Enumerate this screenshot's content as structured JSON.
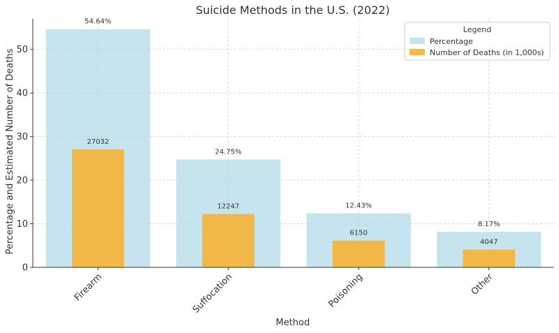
{
  "chart_data": {
    "type": "bar",
    "title": "Suicide Methods in the U.S. (2022)",
    "xlabel": "Method",
    "ylabel": "Percentage and Estimated Number of Deaths",
    "categories": [
      "Firearm",
      "Suffocation",
      "Poisoning",
      "Other"
    ],
    "ylim": [
      0,
      57
    ],
    "yticks": [
      0,
      10,
      20,
      30,
      40,
      50
    ],
    "grid": true,
    "legend": {
      "title": "Legend",
      "placement": "top-right"
    },
    "series": [
      {
        "name": "Percentage",
        "values": [
          54.64,
          24.75,
          12.43,
          8.17
        ],
        "labels": [
          "54.64%",
          "24.75%",
          "12.43%",
          "8.17%"
        ],
        "color": "#add8e6"
      },
      {
        "name": "Number of Deaths (in 1,000s)",
        "values": [
          27.032,
          12.247,
          6.15,
          4.047
        ],
        "labels": [
          "27032",
          "12247",
          "6150",
          "4047"
        ],
        "color": "#f5b335"
      }
    ]
  }
}
